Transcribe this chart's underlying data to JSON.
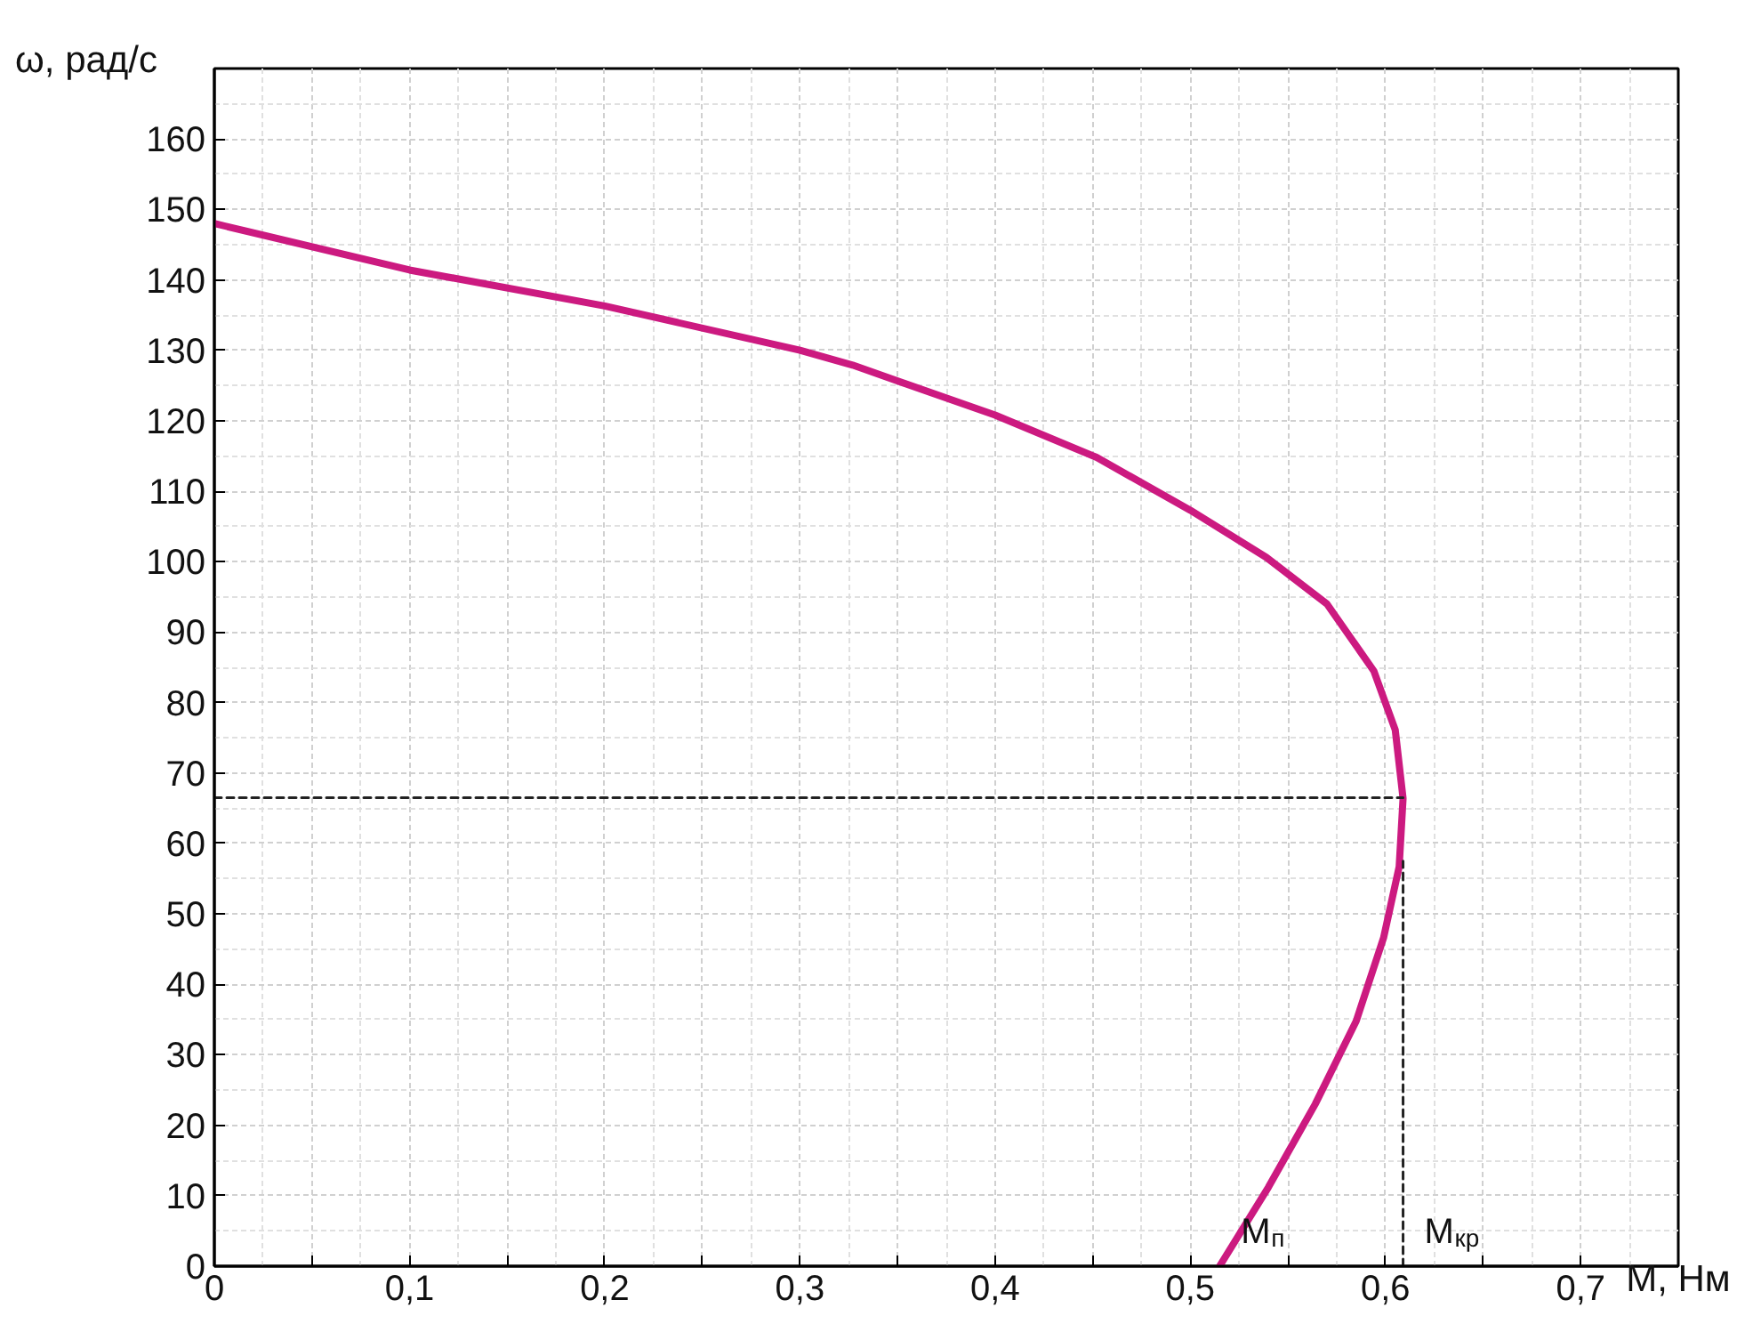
{
  "chart_data": {
    "type": "line",
    "xlabel": "M, Нм",
    "ylabel": "ω, рад/с",
    "xlim": [
      0,
      0.75
    ],
    "ylim": [
      0,
      170
    ],
    "xticks": [
      0,
      {
        "value": 0.05,
        "label": null
      },
      {
        "value": 0.1,
        "label": "0,1"
      },
      {
        "value": 0.15,
        "label": null
      },
      {
        "value": 0.2,
        "label": "0,2"
      },
      {
        "value": 0.25,
        "label": null
      },
      {
        "value": 0.3,
        "label": "0,3"
      },
      {
        "value": 0.35,
        "label": null
      },
      {
        "value": 0.4,
        "label": "0,4"
      },
      {
        "value": 0.45,
        "label": null
      },
      {
        "value": 0.5,
        "label": "0,5"
      },
      {
        "value": 0.55,
        "label": null
      },
      {
        "value": 0.6,
        "label": "0,6"
      },
      {
        "value": 0.65,
        "label": null
      },
      {
        "value": 0.7,
        "label": "0,7"
      }
    ],
    "yticks": [
      0,
      10,
      20,
      30,
      40,
      50,
      60,
      70,
      80,
      90,
      100,
      110,
      120,
      130,
      140,
      150,
      160
    ],
    "grid": true,
    "line_style": "solid",
    "marker": "none",
    "series": [
      {
        "color": "#cc1a80",
        "x": [
          0,
          0.1,
          0.2,
          0.3,
          0.327,
          0.4,
          0.452,
          0.5,
          0.539,
          0.57,
          0.594,
          0.605,
          0.609,
          0.607,
          0.599,
          0.585,
          0.564,
          0.54,
          0.515
        ],
        "values": [
          148,
          141.4,
          136.3,
          130,
          127.9,
          120.8,
          114.8,
          107.3,
          100.6,
          94,
          84.5,
          76.1,
          66.4,
          56.7,
          46.6,
          34.8,
          23,
          11.2,
          0
        ]
      },
      {
        "color": "#222222",
        "line_style": "dashed",
        "x": [
          0,
          0.609
        ],
        "values": [
          66.5,
          66.5
        ]
      },
      {
        "color": "#222222",
        "line_style": "dashed",
        "x": [
          0.609,
          0.609
        ],
        "values": [
          0,
          57.5
        ]
      }
    ],
    "annotations": [
      {
        "text": "M$_{п}$",
        "x": 0.515,
        "y": 0
      },
      {
        "text": "M$_{кр}$",
        "x": 0.609,
        "y": 0
      }
    ]
  }
}
